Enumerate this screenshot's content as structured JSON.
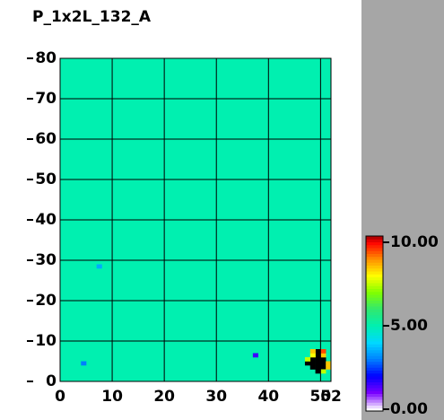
{
  "chart_data": {
    "type": "heatmap",
    "title": "P_1x2L_132_A",
    "xlim": [
      0,
      52
    ],
    "ylim": [
      0,
      80
    ],
    "xticks": [
      0,
      10,
      20,
      30,
      40,
      50,
      52
    ],
    "yticks": [
      0,
      10,
      20,
      30,
      40,
      50,
      60,
      70,
      80
    ],
    "grid": true,
    "fill_value": 5,
    "cells": [
      {
        "x": 47,
        "y": 4,
        "value": 12
      },
      {
        "x": 48,
        "y": 3,
        "value": 12
      },
      {
        "x": 48,
        "y": 4,
        "value": 12
      },
      {
        "x": 48,
        "y": 5,
        "value": 12
      },
      {
        "x": 49,
        "y": 2,
        "value": 12
      },
      {
        "x": 49,
        "y": 3,
        "value": 12
      },
      {
        "x": 49,
        "y": 4,
        "value": 12
      },
      {
        "x": 49,
        "y": 5,
        "value": 12
      },
      {
        "x": 49,
        "y": 6,
        "value": 12
      },
      {
        "x": 50,
        "y": 3,
        "value": 12
      },
      {
        "x": 50,
        "y": 4,
        "value": 12
      },
      {
        "x": 50,
        "y": 5,
        "value": 12
      },
      {
        "x": 49,
        "y": 7,
        "value": 12
      },
      {
        "x": 51,
        "y": 3,
        "value": 8.5
      },
      {
        "x": 51,
        "y": 4,
        "value": 8.5
      },
      {
        "x": 50,
        "y": 6,
        "value": 8.5
      },
      {
        "x": 48,
        "y": 6,
        "value": 8
      },
      {
        "x": 47,
        "y": 5,
        "value": 7.5
      },
      {
        "x": 50,
        "y": 7,
        "value": 9.5
      },
      {
        "x": 48,
        "y": 7,
        "value": 8.5
      },
      {
        "x": 50,
        "y": 2,
        "value": 7.5
      },
      {
        "x": 37,
        "y": 6,
        "value": 1.5
      },
      {
        "x": 4,
        "y": 4,
        "value": 3
      },
      {
        "x": 7,
        "y": 28,
        "value": 3.5
      }
    ],
    "colormap": [
      "#ffffff",
      "#7a00ff",
      "#0000ff",
      "#0080ff",
      "#00d8ff",
      "#00f0b0",
      "#30e870",
      "#80ff00",
      "#ffff00",
      "#ff9000",
      "#ff0000",
      "#000000"
    ],
    "clim": [
      0,
      10
    ],
    "colorbar_ticks": [
      {
        "value": 10,
        "label": "10.00"
      },
      {
        "value": 5,
        "label": "5.00"
      },
      {
        "value": 0,
        "label": "0.00"
      }
    ]
  }
}
